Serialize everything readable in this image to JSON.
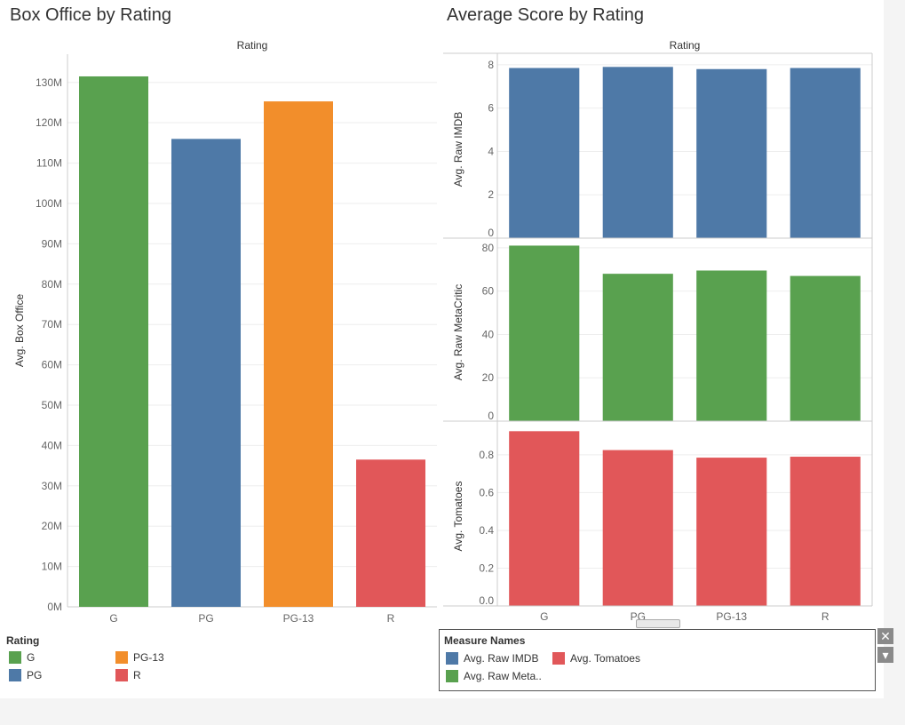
{
  "titles": {
    "left": "Box Office by Rating",
    "right": "Average Score by Rating"
  },
  "colors": {
    "G": "#59a14f",
    "PG": "#4e79a7",
    "PG-13": "#f28e2b",
    "R": "#e15759",
    "imdb": "#4e79a7",
    "metacritic": "#59a14f",
    "tomatoes": "#e15759",
    "grid": "#eeeeee",
    "axis": "#cccccc",
    "tick_text": "#666666"
  },
  "chart_data": [
    {
      "type": "bar",
      "title": "Box Office by Rating",
      "header": "Rating",
      "categories": [
        "G",
        "PG",
        "PG-13",
        "R"
      ],
      "values": [
        131.5,
        116,
        125.3,
        36.5
      ],
      "ylabel": "Avg. Box Office",
      "ylim": [
        0,
        137
      ],
      "yticks": [
        0,
        10,
        20,
        30,
        40,
        50,
        60,
        70,
        80,
        90,
        100,
        110,
        120,
        130
      ],
      "ytick_labels": [
        "0M",
        "10M",
        "20M",
        "30M",
        "40M",
        "50M",
        "60M",
        "70M",
        "80M",
        "90M",
        "100M",
        "110M",
        "120M",
        "130M"
      ],
      "grid": true
    },
    {
      "type": "bar",
      "title": "Average Score by Rating",
      "header": "Rating",
      "categories": [
        "G",
        "PG",
        "PG-13",
        "R"
      ],
      "panels": [
        {
          "name": "Avg. Raw IMDB",
          "ylabel": "Avg. Raw IMDB",
          "values": [
            7.85,
            7.9,
            7.8,
            7.85
          ],
          "ylim": [
            0,
            8.2
          ],
          "yticks": [
            0,
            2,
            4,
            6,
            8
          ],
          "ytick_labels": [
            "0",
            "2",
            "4",
            "6",
            "8"
          ]
        },
        {
          "name": "Avg. Raw MetaCritic",
          "ylabel": "Avg. Raw MetaCritic",
          "values": [
            81,
            68,
            69.5,
            67
          ],
          "ylim": [
            0,
            82
          ],
          "yticks": [
            0,
            20,
            40,
            60,
            80
          ],
          "ytick_labels": [
            "0",
            "20",
            "40",
            "60",
            "80"
          ]
        },
        {
          "name": "Avg. Tomatoes",
          "ylabel": "Avg. Tomatoes",
          "values": [
            0.925,
            0.825,
            0.785,
            0.79
          ],
          "ylim": [
            0,
            0.95
          ],
          "yticks": [
            0,
            0.2,
            0.4,
            0.6,
            0.8
          ],
          "ytick_labels": [
            "0.0",
            "0.2",
            "0.4",
            "0.6",
            "0.8"
          ]
        }
      ],
      "grid": true
    }
  ],
  "rating_legend": {
    "title": "Rating",
    "items": [
      "G",
      "PG",
      "PG-13",
      "R"
    ]
  },
  "measure_legend": {
    "title": "Measure Names",
    "items": [
      "Avg. Raw IMDB",
      "Avg. Tomatoes",
      "Avg. Raw Meta.."
    ]
  },
  "controls": {
    "close_symbol": "✕",
    "menu_symbol": "▾"
  }
}
